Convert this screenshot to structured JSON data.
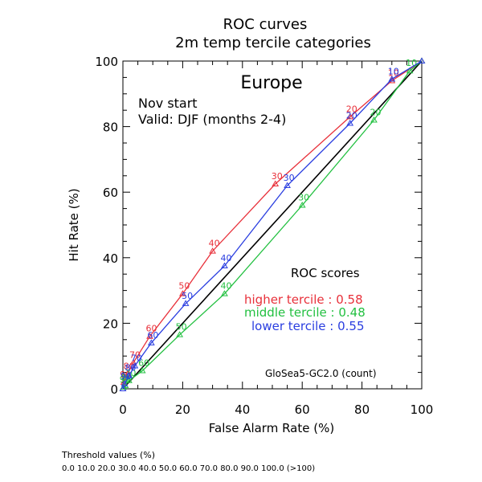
{
  "chart_data": {
    "type": "line",
    "title": "ROC curves",
    "subtitle": "2m temp tercile categories",
    "region": "Europe",
    "annotation_line1": "Nov start",
    "annotation_line2": "Valid: DJF (months 2-4)",
    "xlabel": "False Alarm Rate (%)",
    "ylabel": "Hit Rate (%)",
    "xlim": [
      0,
      100
    ],
    "ylim": [
      0,
      100
    ],
    "x_ticks": [
      0,
      20,
      40,
      60,
      80,
      100
    ],
    "y_ticks": [
      0,
      20,
      40,
      60,
      80,
      100
    ],
    "grid": false,
    "legend_title": "ROC scores",
    "model_label": "GloSea5-GC2.0 (count)",
    "diagonal": {
      "x": [
        0,
        100
      ],
      "y": [
        0,
        100
      ],
      "color": "#000000"
    },
    "series": [
      {
        "name": "higher tercile",
        "score_label": "higher tercile : 0.58",
        "color": "#e8303a",
        "x": [
          100,
          90,
          76,
          51,
          30,
          20,
          9,
          3.5,
          1.5,
          0.3,
          0
        ],
        "y": [
          100,
          94,
          83,
          62.5,
          42,
          29,
          16,
          8,
          4.5,
          2,
          0
        ],
        "threshold_labels": [
          "",
          "10",
          "20",
          "30",
          "40",
          "50",
          "60",
          "70",
          "80",
          "90",
          ""
        ]
      },
      {
        "name": "middle tercile",
        "score_label": "middle tercile : 0.48",
        "color": "#22c040",
        "x": [
          100,
          96,
          84,
          60,
          34,
          19,
          6.5,
          2,
          0.8,
          0.2,
          0
        ],
        "y": [
          100,
          97,
          82,
          56,
          29,
          16.5,
          5.5,
          2.5,
          1,
          0.5,
          0
        ],
        "threshold_labels": [
          "",
          "10",
          "20",
          "30",
          "40",
          "50",
          "60",
          "70",
          "80",
          "90",
          ""
        ]
      },
      {
        "name": "lower tercile",
        "score_label": "lower tercile : 0.55",
        "color": "#2a3ee0",
        "x": [
          100,
          90,
          76,
          55,
          34,
          21,
          9.5,
          4,
          2,
          0.5,
          0
        ],
        "y": [
          100,
          94.5,
          81,
          62,
          37.5,
          26,
          14,
          7,
          4,
          1.5,
          0
        ],
        "threshold_labels": [
          "",
          "10",
          "20",
          "30",
          "40",
          "50",
          "60",
          "70",
          "80",
          "90",
          ""
        ]
      }
    ]
  },
  "footer": {
    "threshold_title": "Threshold values (%)",
    "threshold_values": "0.0 10.0 20.0 30.0 40.0 50.0 60.0 70.0 80.0 90.0 100.0 (>100)"
  }
}
